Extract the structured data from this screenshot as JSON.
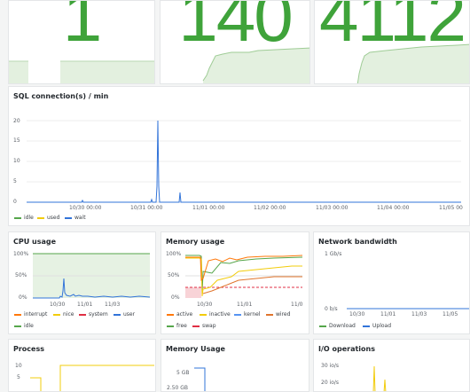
{
  "stats": [
    {
      "value": "1"
    },
    {
      "value": "140"
    },
    {
      "value": "4112"
    }
  ],
  "sql_panel": {
    "title": "SQL connection(s) / min",
    "y_ticks": [
      "0",
      "5",
      "10",
      "15",
      "20"
    ],
    "x_ticks": [
      "10/30 00:00",
      "10/31 00:00",
      "11/01 00:00",
      "11/02 00:00",
      "11/03 00:00",
      "11/04 00:00",
      "11/05 00"
    ],
    "legend": [
      {
        "label": "idle",
        "color": "#56a64b"
      },
      {
        "label": "used",
        "color": "#f2cc0c"
      },
      {
        "label": "wait",
        "color": "#3274d9"
      }
    ]
  },
  "cpu_panel": {
    "title": "CPU usage",
    "y_ticks": [
      "100%",
      "50%",
      "0%"
    ],
    "x_ticks": [
      "10/30",
      "11/01",
      "11/03"
    ],
    "legend": [
      {
        "label": "interrupt",
        "color": "#ff780a"
      },
      {
        "label": "nice",
        "color": "#f2cc0c"
      },
      {
        "label": "system",
        "color": "#e02f44"
      },
      {
        "label": "user",
        "color": "#3274d9"
      },
      {
        "label": "idle",
        "color": "#56a64b"
      }
    ]
  },
  "memory_panel": {
    "title": "Memory usage",
    "y_ticks": [
      "100%",
      "50%",
      "0%"
    ],
    "x_ticks": [
      "10/30",
      "11/01",
      "11/0"
    ],
    "legend": [
      {
        "label": "active",
        "color": "#ff780a"
      },
      {
        "label": "inactive",
        "color": "#f2cc0c"
      },
      {
        "label": "kernel",
        "color": "#5794f2"
      },
      {
        "label": "wired",
        "color": "#e0752d"
      },
      {
        "label": "free",
        "color": "#56a64b"
      },
      {
        "label": "swap",
        "color": "#e02f44"
      }
    ]
  },
  "network_panel": {
    "title": "Network bandwidth",
    "y_ticks": [
      "1 Gb/s",
      "0 b/s"
    ],
    "x_ticks": [
      "10/30",
      "11/01",
      "11/03",
      "11/05"
    ],
    "legend": [
      {
        "label": "Download",
        "color": "#56a64b"
      },
      {
        "label": "Upload",
        "color": "#3274d9"
      }
    ]
  },
  "process_panel": {
    "title": "Process",
    "y_ticks": [
      "10",
      "5"
    ]
  },
  "memory_usage_panel": {
    "title": "Memory Usage",
    "y_ticks": [
      "5 GB",
      "2.50 GB"
    ]
  },
  "io_panel": {
    "title": "I/O operations",
    "y_ticks": [
      "30 io/s",
      "20 io/s"
    ]
  }
}
